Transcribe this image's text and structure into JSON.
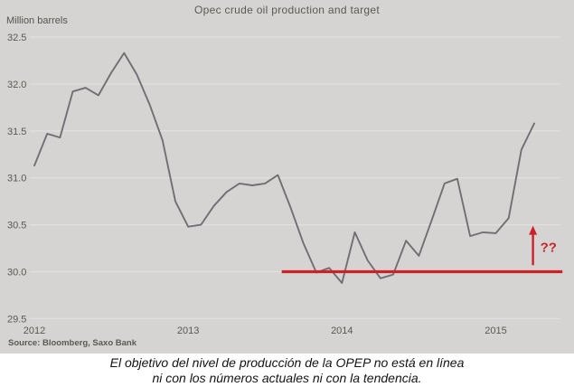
{
  "chart_data": {
    "type": "line",
    "title": "Opec crude oil production and target",
    "unit_label": "Million barrels",
    "source": "Source: Bloomberg, Saxo Bank",
    "x_start": "2012-01",
    "x_interval": "monthly",
    "x_tick_labels": [
      "2012",
      "2013",
      "2014",
      "2015"
    ],
    "x_tick_month_indices": [
      0,
      12,
      24,
      36
    ],
    "y_ticks": [
      "32.5",
      "32.0",
      "31.5",
      "31.0",
      "30.5",
      "30.0",
      "29.5"
    ],
    "ylim": [
      29.5,
      32.5
    ],
    "grid": "horizontal",
    "legend": "none",
    "series": [
      {
        "name": "Opec crude oil production",
        "color": "#706f74",
        "values": [
          31.13,
          31.47,
          31.43,
          31.92,
          31.96,
          31.88,
          32.12,
          32.33,
          32.1,
          31.78,
          31.4,
          30.75,
          30.48,
          30.5,
          30.7,
          30.85,
          30.94,
          30.92,
          30.94,
          31.03,
          30.68,
          30.3,
          29.99,
          30.04,
          29.88,
          30.42,
          30.12,
          29.93,
          29.97,
          30.33,
          30.17,
          30.55,
          30.94,
          30.99,
          30.38,
          30.42,
          30.41,
          30.57,
          31.3,
          31.58
        ]
      }
    ],
    "target_line": {
      "name": "Opec production target",
      "value": 30.0,
      "color": "#cc2129",
      "x_from_month": 19.3,
      "x_to_month": 41.2
    },
    "annotation": {
      "label": "??",
      "color": "#cc2129",
      "x_month": 38.9,
      "arrow_from_value": 30.07,
      "arrow_to_value": 30.49
    }
  },
  "caption": {
    "line1": "El objetivo del nivel de producción de la OPEP no está en línea",
    "line2": "ni con los números actuales ni con la tendencia."
  },
  "colors": {
    "chart_bg": "#d5d4d2",
    "gridline": "#e1e0de",
    "axis_text": "#5a5954",
    "series_line": "#706f74",
    "target_red": "#cc2129",
    "caption_text": "#141414",
    "page_bg": "#ffffff"
  }
}
